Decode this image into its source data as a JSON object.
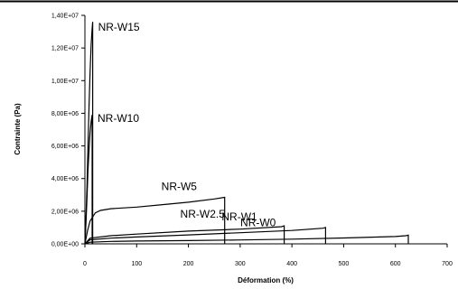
{
  "chart_data": {
    "type": "line",
    "title": "",
    "xlabel": "Déformation (%)",
    "ylabel": "Contrainte (Pa)",
    "xlim": [
      0,
      700
    ],
    "ylim": [
      0,
      14000000
    ],
    "x_ticks": [
      "0",
      "100",
      "200",
      "300",
      "400",
      "500",
      "600",
      "700"
    ],
    "y_ticks": [
      "0,00E+00",
      "2,00E+06",
      "4,00E+06",
      "6,00E+06",
      "8,00E+06",
      "1,00E+07",
      "1,20E+07",
      "1,40E+07"
    ],
    "grid": false,
    "legend": "none",
    "series": [
      {
        "name": "NR-W15",
        "x": [
          0,
          2,
          4,
          6,
          8,
          10,
          12,
          14,
          15
        ],
        "y": [
          0,
          1500000,
          3500000,
          6000000,
          8500000,
          10500000,
          12200000,
          13200000,
          13600000
        ]
      },
      {
        "name": "NR-W10",
        "x": [
          0,
          2,
          4,
          6,
          8,
          10,
          12,
          14
        ],
        "y": [
          0,
          1200000,
          2800000,
          4500000,
          5800000,
          6800000,
          7500000,
          7900000
        ]
      },
      {
        "name": "NR-W5",
        "x": [
          0,
          5,
          10,
          20,
          30,
          50,
          100,
          150,
          200,
          250,
          270
        ],
        "y": [
          0,
          800000,
          1400000,
          1900000,
          2050000,
          2150000,
          2250000,
          2400000,
          2550000,
          2750000,
          2850000
        ]
      },
      {
        "name": "NR-W2.5",
        "x": [
          0,
          10,
          50,
          100,
          200,
          300,
          380,
          385
        ],
        "y": [
          0,
          350000,
          500000,
          600000,
          780000,
          900000,
          1050000,
          1100000
        ]
      },
      {
        "name": "NR-W1",
        "x": [
          0,
          10,
          50,
          100,
          200,
          300,
          400,
          460,
          465
        ],
        "y": [
          0,
          250000,
          350000,
          420000,
          550000,
          680000,
          820000,
          960000,
          1000000
        ]
      },
      {
        "name": "NR-W0",
        "x": [
          0,
          10,
          50,
          100,
          200,
          300,
          400,
          500,
          600,
          620,
          625
        ],
        "y": [
          0,
          100000,
          150000,
          170000,
          200000,
          240000,
          290000,
          360000,
          450000,
          500000,
          530000
        ]
      }
    ]
  }
}
